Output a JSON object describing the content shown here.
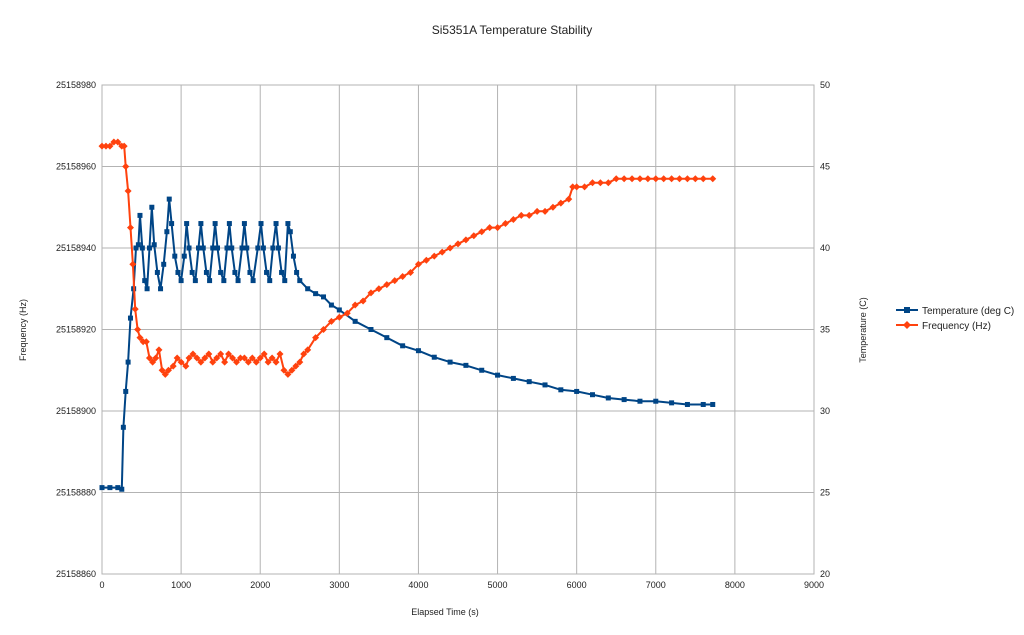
{
  "chart_data": {
    "type": "line",
    "title": "Si5351A Temperature Stability",
    "xlabel": "Elapsed Time (s)",
    "ylabel_left": "Frequency (Hz)",
    "ylabel_right": "Temperature (C)",
    "xlim": [
      0,
      9000
    ],
    "ylim_left": [
      25158860,
      25158980
    ],
    "ylim_right": [
      20,
      50
    ],
    "x_ticks": [
      "0",
      "1000",
      "2000",
      "3000",
      "4000",
      "5000",
      "6000",
      "7000",
      "8000",
      "9000"
    ],
    "y_ticks_left": [
      "25158860",
      "25158880",
      "25158900",
      "25158920",
      "25158940",
      "25158960",
      "25158980"
    ],
    "y_ticks_right": [
      "20",
      "25",
      "30",
      "35",
      "40",
      "45",
      "50"
    ],
    "grid": true,
    "legend_position": "right",
    "series": [
      {
        "name": "Temperature (deg C)",
        "axis": "right",
        "color": "#004586",
        "marker": "square",
        "points": [
          [
            0,
            25.3
          ],
          [
            100,
            25.3
          ],
          [
            200,
            25.3
          ],
          [
            250,
            25.2
          ],
          [
            270,
            29
          ],
          [
            300,
            31.2
          ],
          [
            330,
            33
          ],
          [
            360,
            35.7
          ],
          [
            400,
            37.5
          ],
          [
            430,
            40
          ],
          [
            460,
            40.2
          ],
          [
            480,
            42
          ],
          [
            510,
            40
          ],
          [
            540,
            38
          ],
          [
            570,
            37.5
          ],
          [
            600,
            40
          ],
          [
            630,
            42.5
          ],
          [
            660,
            40.2
          ],
          [
            700,
            38.5
          ],
          [
            740,
            37.5
          ],
          [
            780,
            39
          ],
          [
            820,
            41
          ],
          [
            850,
            43
          ],
          [
            880,
            41.5
          ],
          [
            920,
            39.5
          ],
          [
            960,
            38.5
          ],
          [
            1000,
            38
          ],
          [
            1040,
            39.5
          ],
          [
            1070,
            41.5
          ],
          [
            1100,
            40
          ],
          [
            1140,
            38.5
          ],
          [
            1180,
            38
          ],
          [
            1220,
            40
          ],
          [
            1250,
            41.5
          ],
          [
            1280,
            40
          ],
          [
            1320,
            38.5
          ],
          [
            1360,
            38
          ],
          [
            1400,
            40
          ],
          [
            1430,
            41.5
          ],
          [
            1460,
            40
          ],
          [
            1500,
            38.5
          ],
          [
            1540,
            38
          ],
          [
            1580,
            40
          ],
          [
            1610,
            41.5
          ],
          [
            1640,
            40
          ],
          [
            1680,
            38.5
          ],
          [
            1720,
            38
          ],
          [
            1770,
            40
          ],
          [
            1800,
            41.5
          ],
          [
            1830,
            40
          ],
          [
            1870,
            38.5
          ],
          [
            1910,
            38
          ],
          [
            1970,
            40
          ],
          [
            2010,
            41.5
          ],
          [
            2040,
            40
          ],
          [
            2080,
            38.5
          ],
          [
            2120,
            38
          ],
          [
            2160,
            40
          ],
          [
            2200,
            41.5
          ],
          [
            2230,
            40
          ],
          [
            2270,
            38.5
          ],
          [
            2310,
            38
          ],
          [
            2350,
            41.5
          ],
          [
            2380,
            41
          ],
          [
            2420,
            39.5
          ],
          [
            2460,
            38.5
          ],
          [
            2500,
            38
          ],
          [
            2600,
            37.5
          ],
          [
            2700,
            37.2
          ],
          [
            2800,
            37
          ],
          [
            2900,
            36.5
          ],
          [
            3000,
            36.2
          ],
          [
            3200,
            35.5
          ],
          [
            3400,
            35
          ],
          [
            3600,
            34.5
          ],
          [
            3800,
            34
          ],
          [
            4000,
            33.7
          ],
          [
            4200,
            33.3
          ],
          [
            4400,
            33
          ],
          [
            4600,
            32.8
          ],
          [
            4800,
            32.5
          ],
          [
            5000,
            32.2
          ],
          [
            5200,
            32
          ],
          [
            5400,
            31.8
          ],
          [
            5600,
            31.6
          ],
          [
            5800,
            31.3
          ],
          [
            6000,
            31.2
          ],
          [
            6200,
            31
          ],
          [
            6400,
            30.8
          ],
          [
            6600,
            30.7
          ],
          [
            6800,
            30.6
          ],
          [
            7000,
            30.6
          ],
          [
            7200,
            30.5
          ],
          [
            7400,
            30.4
          ],
          [
            7600,
            30.4
          ],
          [
            7720,
            30.4
          ]
        ]
      },
      {
        "name": "Frequency (Hz)",
        "axis": "left",
        "color": "#ff420e",
        "marker": "diamond",
        "points": [
          [
            0,
            25158965
          ],
          [
            50,
            25158965
          ],
          [
            100,
            25158965
          ],
          [
            150,
            25158966
          ],
          [
            200,
            25158966
          ],
          [
            250,
            25158965
          ],
          [
            280,
            25158965
          ],
          [
            300,
            25158960
          ],
          [
            330,
            25158954
          ],
          [
            360,
            25158945
          ],
          [
            390,
            25158936
          ],
          [
            420,
            25158925
          ],
          [
            450,
            25158920
          ],
          [
            480,
            25158918
          ],
          [
            520,
            25158917
          ],
          [
            560,
            25158917
          ],
          [
            600,
            25158913
          ],
          [
            640,
            25158912
          ],
          [
            680,
            25158913
          ],
          [
            720,
            25158915
          ],
          [
            760,
            25158910
          ],
          [
            800,
            25158909
          ],
          [
            840,
            25158910
          ],
          [
            900,
            25158911
          ],
          [
            950,
            25158913
          ],
          [
            1000,
            25158912
          ],
          [
            1060,
            25158911
          ],
          [
            1100,
            25158913
          ],
          [
            1150,
            25158914
          ],
          [
            1200,
            25158913
          ],
          [
            1250,
            25158912
          ],
          [
            1300,
            25158913
          ],
          [
            1350,
            25158914
          ],
          [
            1400,
            25158912
          ],
          [
            1450,
            25158913
          ],
          [
            1500,
            25158914
          ],
          [
            1550,
            25158912
          ],
          [
            1600,
            25158914
          ],
          [
            1650,
            25158913
          ],
          [
            1700,
            25158912
          ],
          [
            1750,
            25158913
          ],
          [
            1800,
            25158913
          ],
          [
            1850,
            25158912
          ],
          [
            1900,
            25158913
          ],
          [
            1950,
            25158912
          ],
          [
            2000,
            25158913
          ],
          [
            2050,
            25158914
          ],
          [
            2100,
            25158912
          ],
          [
            2150,
            25158913
          ],
          [
            2200,
            25158912
          ],
          [
            2250,
            25158914
          ],
          [
            2300,
            25158910
          ],
          [
            2350,
            25158909
          ],
          [
            2400,
            25158910
          ],
          [
            2450,
            25158911
          ],
          [
            2500,
            25158912
          ],
          [
            2550,
            25158914
          ],
          [
            2600,
            25158915
          ],
          [
            2700,
            25158918
          ],
          [
            2800,
            25158920
          ],
          [
            2900,
            25158922
          ],
          [
            3000,
            25158923
          ],
          [
            3100,
            25158924
          ],
          [
            3200,
            25158926
          ],
          [
            3300,
            25158927
          ],
          [
            3400,
            25158929
          ],
          [
            3500,
            25158930
          ],
          [
            3600,
            25158931
          ],
          [
            3700,
            25158932
          ],
          [
            3800,
            25158933
          ],
          [
            3900,
            25158934
          ],
          [
            4000,
            25158936
          ],
          [
            4100,
            25158937
          ],
          [
            4200,
            25158938
          ],
          [
            4300,
            25158939
          ],
          [
            4400,
            25158940
          ],
          [
            4500,
            25158941
          ],
          [
            4600,
            25158942
          ],
          [
            4700,
            25158943
          ],
          [
            4800,
            25158944
          ],
          [
            4900,
            25158945
          ],
          [
            5000,
            25158945
          ],
          [
            5100,
            25158946
          ],
          [
            5200,
            25158947
          ],
          [
            5300,
            25158948
          ],
          [
            5400,
            25158948
          ],
          [
            5500,
            25158949
          ],
          [
            5600,
            25158949
          ],
          [
            5700,
            25158950
          ],
          [
            5800,
            25158951
          ],
          [
            5900,
            25158952
          ],
          [
            5950,
            25158955
          ],
          [
            6000,
            25158955
          ],
          [
            6100,
            25158955
          ],
          [
            6200,
            25158956
          ],
          [
            6300,
            25158956
          ],
          [
            6400,
            25158956
          ],
          [
            6500,
            25158957
          ],
          [
            6600,
            25158957
          ],
          [
            6700,
            25158957
          ],
          [
            6800,
            25158957
          ],
          [
            6900,
            25158957
          ],
          [
            7000,
            25158957
          ],
          [
            7100,
            25158957
          ],
          [
            7200,
            25158957
          ],
          [
            7300,
            25158957
          ],
          [
            7400,
            25158957
          ],
          [
            7500,
            25158957
          ],
          [
            7600,
            25158957
          ],
          [
            7720,
            25158957
          ]
        ]
      }
    ]
  }
}
